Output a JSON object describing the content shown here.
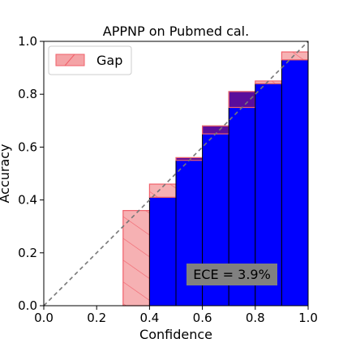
{
  "chart_data": {
    "type": "bar",
    "title": "APPNP on Pubmed cal.",
    "xlabel": "Confidence",
    "ylabel": "Accuracy",
    "xlim": [
      0.0,
      1.0
    ],
    "ylim": [
      0.0,
      1.0
    ],
    "xticks": [
      "0.0",
      "0.2",
      "0.4",
      "0.6",
      "0.8",
      "1.0"
    ],
    "yticks": [
      "0.0",
      "0.2",
      "0.4",
      "0.6",
      "0.8",
      "1.0"
    ],
    "bin_width": 0.1,
    "bins": [
      {
        "left": 0.3,
        "accuracy": 0.0,
        "confidence": 0.36
      },
      {
        "left": 0.4,
        "accuracy": 0.41,
        "confidence": 0.46
      },
      {
        "left": 0.5,
        "accuracy": 0.56,
        "confidence": 0.55
      },
      {
        "left": 0.6,
        "accuracy": 0.68,
        "confidence": 0.65
      },
      {
        "left": 0.7,
        "accuracy": 0.81,
        "confidence": 0.75
      },
      {
        "left": 0.8,
        "accuracy": 0.84,
        "confidence": 0.85
      },
      {
        "left": 0.9,
        "accuracy": 0.93,
        "confidence": 0.96
      }
    ],
    "legend": {
      "entries": [
        "Gap"
      ],
      "position": "top-left"
    },
    "annotation": "ECE = 3.9%",
    "diagonal": true,
    "grid": false,
    "colors": {
      "accuracy_bar": "#0000ff",
      "gap_fill": "#f4a3a6",
      "gap_edge": "#f0616b",
      "overlap": "#5a0d9c",
      "diagonal": "#777777",
      "annotation_box": "#808080"
    }
  }
}
